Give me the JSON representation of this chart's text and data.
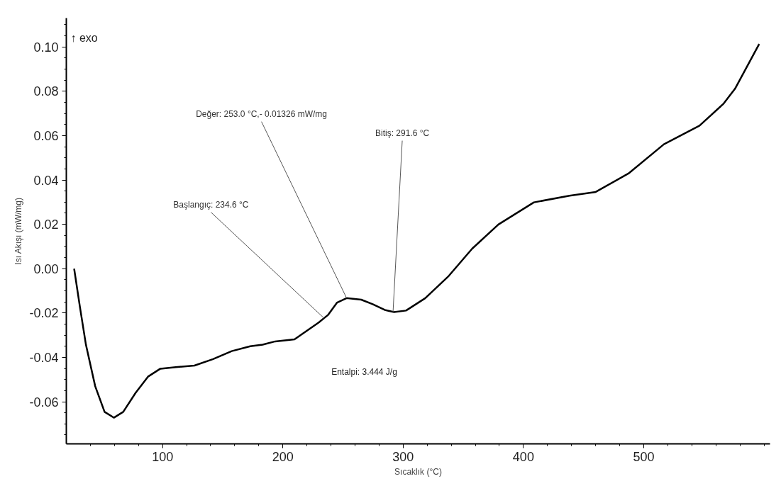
{
  "chart_data": {
    "type": "line",
    "xlabel": "Sıcaklık (°C)",
    "ylabel": "Isı Akışı (mW/mg)",
    "x": [
      26.5,
      31.2,
      36.3,
      44,
      51.8,
      59.5,
      67.3,
      77.6,
      87.9,
      98.2,
      111,
      126.5,
      142,
      157.5,
      172.9,
      183.2,
      193.6,
      209.7,
      229.8,
      237.5,
      245.1,
      253,
      265.2,
      274.7,
      284.7,
      292.4,
      302.4,
      318.4,
      337.9,
      357.4,
      379.2,
      408.7,
      438.3,
      460.1,
      487.3,
      516.8,
      546.4,
      566.4,
      575.9,
      596
    ],
    "series": [
      {
        "color": "#000000",
        "values": [
          0.0,
          -0.0169,
          -0.0343,
          -0.053,
          -0.0646,
          -0.0672,
          -0.0646,
          -0.056,
          -0.0487,
          -0.0451,
          -0.0444,
          -0.0437,
          -0.0408,
          -0.0372,
          -0.035,
          -0.0343,
          -0.0328,
          -0.0319,
          -0.0243,
          -0.0209,
          -0.0153,
          -0.0133,
          -0.014,
          -0.016,
          -0.0186,
          -0.0196,
          -0.0189,
          -0.0133,
          -0.0033,
          0.009,
          0.0199,
          0.0299,
          0.0329,
          0.0346,
          0.0429,
          0.0561,
          0.0645,
          0.0744,
          0.0811,
          0.1013
        ]
      }
    ],
    "xlim": [
      20,
      605
    ],
    "ylim": [
      -0.079,
      0.113
    ],
    "xticks": [
      100,
      200,
      300,
      400,
      500
    ],
    "yticks": [
      {
        "value": 0.1,
        "label": "0.10"
      },
      {
        "value": 0.08,
        "label": "0.08"
      },
      {
        "value": 0.06,
        "label": "0.06"
      },
      {
        "value": 0.04,
        "label": "0.04"
      },
      {
        "value": 0.02,
        "label": "0.02"
      },
      {
        "value": 0,
        "label": "0.00"
      },
      {
        "value": -0.02,
        "label": "-0.02"
      },
      {
        "value": -0.04,
        "label": "-0.04"
      },
      {
        "value": -0.06,
        "label": "-0.06"
      }
    ],
    "grid": false,
    "annotations": [
      "↑ exo",
      {
        "text": "Değer: 253.0 °C,- 0.01326 mW/mg",
        "x": 253.0,
        "y": -0.01326
      },
      {
        "text": "Bitiş: 291.6 °C",
        "x": 291.6,
        "y": -0.0196
      },
      {
        "text": "Başlangıç: 234.6 °C",
        "x": 234.6,
        "y": -0.0225
      },
      "Entalpi: 3.444 J/g"
    ]
  }
}
